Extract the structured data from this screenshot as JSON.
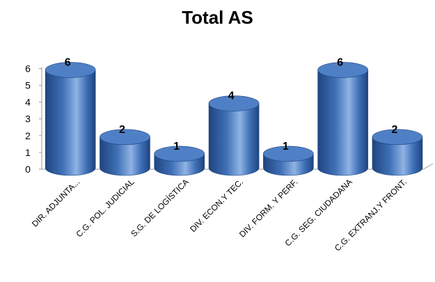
{
  "chart_data": {
    "type": "bar",
    "title": "Total AS",
    "xlabel": "",
    "ylabel": "",
    "categories": [
      "DIR. ADJUNTA...",
      "C.G. POL. JUDICIAL",
      "S.G. DE LOGÍSTICA",
      "DIV. ECON.Y TEC.",
      "DIV. FORM. Y PERF.",
      "C.G. SEG. CIUDADANA",
      "C.G. EXTRANJ.Y FRONT."
    ],
    "values": [
      6,
      2,
      1,
      4,
      1,
      6,
      2
    ],
    "ylim": [
      0,
      6
    ],
    "yticks": [
      "0",
      "1",
      "2",
      "3",
      "4",
      "5",
      "6"
    ],
    "grid": false,
    "legend": "none",
    "style": "3d-cylinder",
    "colors": {
      "bar": "#3f70b6",
      "bar_dark": "#1f4480",
      "bar_light": "#8fb3e4",
      "bar_top": "#4f80c6"
    }
  }
}
